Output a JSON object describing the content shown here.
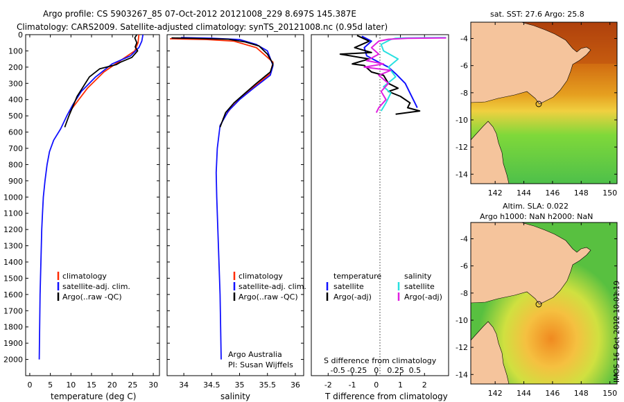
{
  "header": {
    "line1": "Argo profile: CS 5903267_85 07-Oct-2012 20121008_229 8.697S 145.387E",
    "line2": "Climatology: CARS2009. Satellite-adjusted climatology: synTS_20121008.nc (0.95d later)"
  },
  "colors": {
    "climatology": "#ff2a00",
    "satellite": "#1010ff",
    "argo": "#000000",
    "salinity_satellite": "#28e0e0",
    "salinity_argo": "#e020e0",
    "land": "#f5c49c"
  },
  "chart_data": [
    {
      "type": "line",
      "xlabel": "temperature (deg C)",
      "xticks": [
        "0",
        "5",
        "10",
        "15",
        "20",
        "25",
        "30"
      ],
      "xlim": [
        -1,
        31.5
      ],
      "ylim": [
        2100,
        0
      ],
      "yticks": [
        "0",
        "100",
        "200",
        "300",
        "400",
        "500",
        "600",
        "700",
        "800",
        "900",
        "1000",
        "1100",
        "1200",
        "1300",
        "1400",
        "1500",
        "1600",
        "1700",
        "1800",
        "1900",
        "2000"
      ],
      "legend": {
        "position": "lower-center",
        "entries": [
          "climatology",
          "satellite-adj. clim.",
          "Argo(..raw -QC)"
        ]
      },
      "series": [
        {
          "name": "climatology",
          "points": [
            [
              26.5,
              0
            ],
            [
              26.3,
              50
            ],
            [
              25.5,
              100
            ],
            [
              22,
              160
            ],
            [
              18,
              230
            ],
            [
              14,
              330
            ],
            [
              11,
              430
            ],
            [
              9.5,
              480
            ]
          ]
        },
        {
          "name": "satellite-adj. clim.",
          "points": [
            [
              27.5,
              0
            ],
            [
              27.2,
              40
            ],
            [
              26.5,
              80
            ],
            [
              24.5,
              130
            ],
            [
              20,
              180
            ],
            [
              16,
              260
            ],
            [
              12.5,
              350
            ],
            [
              10.5,
              430
            ],
            [
              9,
              500
            ],
            [
              7.5,
              580
            ],
            [
              5.8,
              650
            ],
            [
              4.8,
              720
            ],
            [
              4.2,
              800
            ],
            [
              3.7,
              900
            ],
            [
              3.3,
              1000
            ],
            [
              3.1,
              1100
            ],
            [
              2.9,
              1200
            ],
            [
              2.8,
              1300
            ],
            [
              2.7,
              1400
            ],
            [
              2.6,
              1500
            ],
            [
              2.5,
              1600
            ],
            [
              2.45,
              1700
            ],
            [
              2.4,
              1800
            ],
            [
              2.35,
              1900
            ],
            [
              2.3,
              2000
            ]
          ]
        },
        {
          "name": "Argo(..raw -QC)",
          "points": [
            [
              26,
              0
            ],
            [
              25.5,
              20
            ],
            [
              26,
              50
            ],
            [
              25.6,
              75
            ],
            [
              26.2,
              100
            ],
            [
              24.8,
              140
            ],
            [
              22,
              170
            ],
            [
              21,
              185
            ],
            [
              17,
              210
            ],
            [
              14.5,
              260
            ],
            [
              13,
              320
            ],
            [
              11.5,
              380
            ],
            [
              10.5,
              440
            ],
            [
              9.5,
              500
            ],
            [
              8.5,
              570
            ]
          ]
        }
      ]
    },
    {
      "type": "line",
      "xlabel": "salinity",
      "xticks": [
        "34",
        "34.5",
        "35",
        "35.5",
        "36"
      ],
      "xlim": [
        33.7,
        36.15
      ],
      "ylim": [
        2100,
        0
      ],
      "legend": {
        "position": "lower-center",
        "entries": [
          "climatology",
          "satellite-adj. clim.",
          "Argo(..raw -QC)"
        ]
      },
      "annotation": [
        "Argo Australia",
        "PI: Susan Wijffels"
      ],
      "series": [
        {
          "name": "climatology",
          "points": [
            [
              33.75,
              25
            ],
            [
              34.0,
              27
            ],
            [
              34.4,
              30
            ],
            [
              34.9,
              40
            ],
            [
              35.3,
              80
            ],
            [
              35.6,
              170
            ],
            [
              35.55,
              240
            ],
            [
              35.3,
              310
            ],
            [
              35.05,
              380
            ],
            [
              34.85,
              450
            ],
            [
              34.7,
              520
            ]
          ]
        },
        {
          "name": "satellite-adj. clim.",
          "points": [
            [
              33.95,
              18
            ],
            [
              34.5,
              22
            ],
            [
              35.0,
              30
            ],
            [
              35.3,
              60
            ],
            [
              35.5,
              100
            ],
            [
              35.6,
              190
            ],
            [
              35.55,
              250
            ],
            [
              35.25,
              330
            ],
            [
              35.0,
              400
            ],
            [
              34.8,
              470
            ],
            [
              34.65,
              560
            ],
            [
              34.6,
              700
            ],
            [
              34.58,
              850
            ],
            [
              34.59,
              1000
            ],
            [
              34.61,
              1200
            ],
            [
              34.63,
              1400
            ],
            [
              34.65,
              1600
            ],
            [
              34.66,
              1800
            ],
            [
              34.67,
              2000
            ]
          ]
        },
        {
          "name": "Argo(..raw -QC)",
          "points": [
            [
              33.78,
              20
            ],
            [
              34.2,
              23
            ],
            [
              34.8,
              28
            ],
            [
              35.1,
              45
            ],
            [
              35.35,
              70
            ],
            [
              35.5,
              120
            ],
            [
              35.6,
              180
            ],
            [
              35.55,
              230
            ],
            [
              35.3,
              300
            ],
            [
              35.1,
              360
            ],
            [
              34.9,
              420
            ],
            [
              34.75,
              480
            ],
            [
              34.65,
              570
            ]
          ]
        }
      ]
    },
    {
      "type": "line",
      "xlabel": "T difference from climatology",
      "xticks": [
        "-2",
        "-1",
        "0",
        "1",
        "2"
      ],
      "x2label": "S difference from climatology",
      "x2ticks": [
        "-0.5",
        "-0.25",
        "0",
        "0.25",
        "0.5"
      ],
      "xlim": [
        -2.7,
        3.0
      ],
      "ylim": [
        2100,
        0
      ],
      "legend": {
        "position": "lower-center",
        "entries": [
          "temperature",
          "satellite",
          "Argo(-adj)",
          "salinity",
          "satellite",
          "Argo(-adj)"
        ]
      },
      "series": [
        {
          "name": "temperature satellite",
          "points": [
            [
              -0.6,
              10
            ],
            [
              -0.2,
              40
            ],
            [
              -0.5,
              80
            ],
            [
              -0.4,
              130
            ],
            [
              0.1,
              170
            ],
            [
              0.5,
              200
            ],
            [
              0.8,
              240
            ],
            [
              1.2,
              300
            ],
            [
              1.4,
              360
            ],
            [
              1.6,
              420
            ],
            [
              1.7,
              450
            ]
          ]
        },
        {
          "name": "temperature Argo(-adj)",
          "points": [
            [
              -0.8,
              5
            ],
            [
              -0.3,
              40
            ],
            [
              -0.9,
              80
            ],
            [
              -0.2,
              110
            ],
            [
              -1.5,
              120
            ],
            [
              -0.3,
              150
            ],
            [
              -1.0,
              180
            ],
            [
              -0.5,
              190
            ],
            [
              -0.2,
              230
            ],
            [
              0.3,
              250
            ],
            [
              0.5,
              300
            ],
            [
              0.9,
              330
            ],
            [
              0.5,
              350
            ],
            [
              1.0,
              380
            ],
            [
              1.4,
              420
            ],
            [
              1.3,
              450
            ],
            [
              1.8,
              470
            ],
            [
              0.8,
              490
            ]
          ]
        },
        {
          "name": "salinity satellite",
          "points": [
            [
              2.9,
              18
            ],
            [
              1.2,
              20
            ],
            [
              0.8,
              22
            ],
            [
              0.6,
              30
            ],
            [
              0.2,
              60
            ],
            [
              0.3,
              100
            ],
            [
              0.9,
              150
            ],
            [
              0.5,
              200
            ],
            [
              0.8,
              260
            ],
            [
              0.3,
              320
            ],
            [
              0.6,
              360
            ],
            [
              0.4,
              420
            ],
            [
              0.2,
              470
            ]
          ]
        },
        {
          "name": "salinity Argo(-adj)",
          "points": [
            [
              2.9,
              20
            ],
            [
              1.3,
              22
            ],
            [
              0.5,
              28
            ],
            [
              0.1,
              40
            ],
            [
              -0.2,
              80
            ],
            [
              0.1,
              120
            ],
            [
              -0.4,
              160
            ],
            [
              0.3,
              180
            ],
            [
              -0.5,
              200
            ],
            [
              0.6,
              220
            ],
            [
              0.1,
              250
            ],
            [
              0.5,
              300
            ],
            [
              0.2,
              350
            ],
            [
              0.4,
              400
            ],
            [
              0.1,
              450
            ],
            [
              0.0,
              480
            ]
          ]
        }
      ]
    }
  ],
  "maps": [
    {
      "title": "sat. SST: 27.6 Argo: 25.8",
      "xticks": [
        "142",
        "144",
        "146",
        "148",
        "150"
      ],
      "yticks": [
        "-4",
        "-6",
        "-8",
        "-10",
        "-12",
        "-14"
      ],
      "xlim": [
        140.3,
        150.5
      ],
      "ylim": [
        -14.7,
        -2.8
      ]
    },
    {
      "title_line1": "Altim. SLA: 0.022",
      "title_line2": "Argo h1000: NaN h2000: NaN",
      "xticks": [
        "142",
        "144",
        "146",
        "148",
        "150"
      ],
      "yticks": [
        "-4",
        "-6",
        "-8",
        "-10",
        "-12",
        "-14"
      ],
      "xlim": [
        140.3,
        150.5
      ],
      "ylim": [
        -14.7,
        -2.8
      ]
    }
  ],
  "footer": {
    "credit": "IMOS 16-Oct-2012 10:01:19"
  }
}
